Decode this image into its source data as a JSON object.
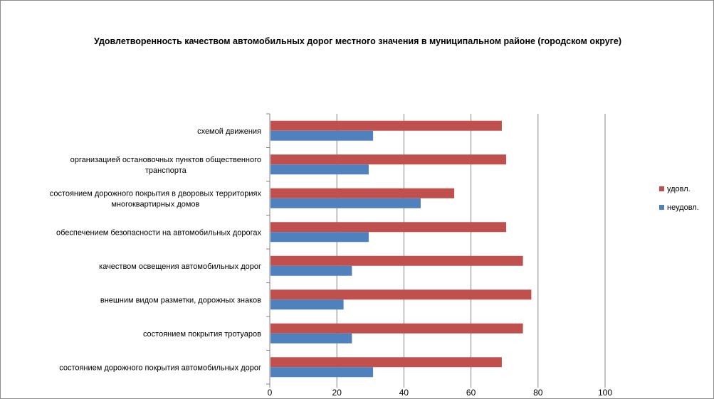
{
  "chart_data": {
    "type": "bar",
    "orientation": "horizontal",
    "title": "Удовлетворенность качеством автомобильных дорог местного значения в муниципальном районе (городском округе)",
    "categories": [
      [
        "схемой движения"
      ],
      [
        "организацией остановочных пунктов общественного",
        "транспорта"
      ],
      [
        "состоянием дорожного покрытия в дворовых территориях",
        "многоквартирных домов"
      ],
      [
        "обеспечением  безопасности на автомобильных дорогах"
      ],
      [
        "качеством освещения  автомобильных дорог"
      ],
      [
        "внешним  видом разметки, дорожных знаков"
      ],
      [
        "состоянием покрытия тротуаров"
      ],
      [
        "состоянием дорожного покрытия автомобильных дорог"
      ]
    ],
    "series": [
      {
        "name": "удовл.",
        "color": "#c0504d",
        "values": [
          69.2,
          70.5,
          55.0,
          70.5,
          75.5,
          78.0,
          75.5,
          69.2
        ]
      },
      {
        "name": "неудовл.",
        "color": "#4f81bd",
        "values": [
          30.8,
          29.5,
          45.0,
          29.5,
          24.5,
          22.0,
          24.5,
          30.8
        ]
      }
    ],
    "xlim": [
      0,
      100
    ],
    "xticks": [
      "0",
      "20",
      "40",
      "60",
      "80",
      "100"
    ],
    "grid": "vertical",
    "legend_position": "right"
  }
}
